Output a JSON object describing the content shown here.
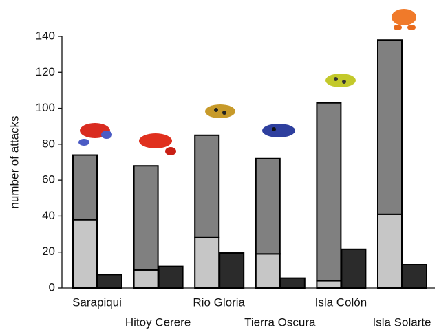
{
  "chart_data": {
    "type": "bar",
    "y_label": "number of attacks",
    "categories": [
      "Sarapiqui",
      "Hitoy Cerere",
      "Rio Gloria",
      "Tierra Oscura",
      "Isla Colón",
      "Isla Solarte"
    ],
    "series": [
      {
        "color": "#c6c6c6",
        "values": [
          38,
          10,
          28,
          19,
          4,
          41
        ],
        "stack": "a"
      },
      {
        "color": "#808080",
        "values": [
          36,
          58,
          57,
          53,
          99,
          97
        ],
        "stack": "a"
      },
      {
        "color": "#2b2b2b",
        "values": [
          7.5,
          12,
          19.5,
          5.5,
          21.5,
          13
        ],
        "stack": "b"
      }
    ],
    "ylim": [
      0,
      140
    ],
    "yticks": [
      0,
      20,
      40,
      60,
      80,
      100,
      120,
      140
    ]
  }
}
